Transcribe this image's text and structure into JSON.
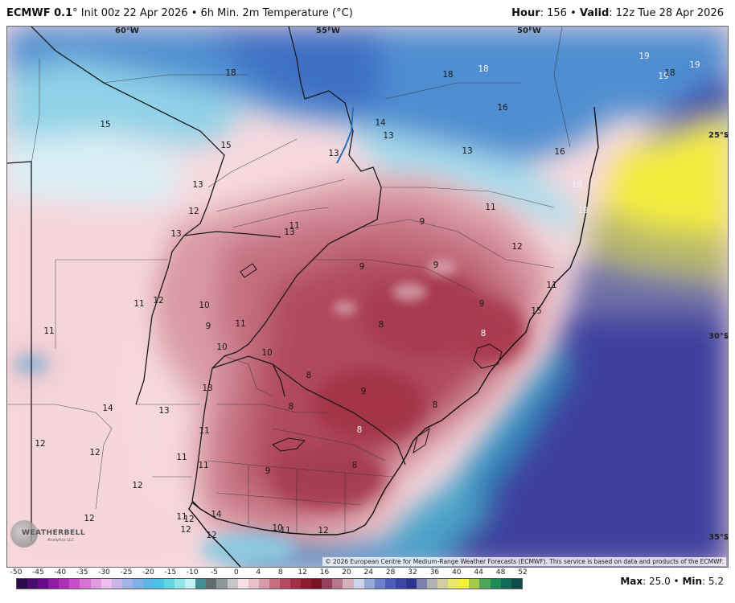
{
  "header": {
    "brand": "ECMWF 0.1",
    "degree": "°",
    "init": "Init 00z 22 Apr 2026",
    "sep": "•",
    "product": "6h Min. 2m Temperature (°C)",
    "hour_label": "Hour",
    "hour_value": "156",
    "valid_label": "Valid",
    "valid_value": "12z Tue 28 Apr 2026"
  },
  "map": {
    "lon_labels": [
      {
        "text": "60°W"
      },
      {
        "text": "55°W"
      },
      {
        "text": "50°W"
      }
    ],
    "lat_labels": [
      {
        "text": "25°S"
      },
      {
        "text": "30°S"
      },
      {
        "text": "35°S"
      }
    ],
    "values": [
      {
        "text": "18"
      },
      {
        "text": "18"
      },
      {
        "text": "18"
      },
      {
        "text": "19"
      },
      {
        "text": "19"
      },
      {
        "text": "18"
      },
      {
        "text": "19"
      },
      {
        "text": "15"
      },
      {
        "text": "15"
      },
      {
        "text": "14"
      },
      {
        "text": "13"
      },
      {
        "text": "13"
      },
      {
        "text": "13"
      },
      {
        "text": "16"
      },
      {
        "text": "16"
      },
      {
        "text": "19"
      },
      {
        "text": "19"
      },
      {
        "text": "13"
      },
      {
        "text": "12"
      },
      {
        "text": "11"
      },
      {
        "text": "13"
      },
      {
        "text": "13"
      },
      {
        "text": "11"
      },
      {
        "text": "9"
      },
      {
        "text": "12"
      },
      {
        "text": "9"
      },
      {
        "text": "9"
      },
      {
        "text": "11"
      },
      {
        "text": "15"
      },
      {
        "text": "11"
      },
      {
        "text": "12"
      },
      {
        "text": "10"
      },
      {
        "text": "9"
      },
      {
        "text": "11"
      },
      {
        "text": "9"
      },
      {
        "text": "8"
      },
      {
        "text": "8"
      },
      {
        "text": "11"
      },
      {
        "text": "10"
      },
      {
        "text": "10"
      },
      {
        "text": "8"
      },
      {
        "text": "13"
      },
      {
        "text": "14"
      },
      {
        "text": "13"
      },
      {
        "text": "8"
      },
      {
        "text": "9"
      },
      {
        "text": "8"
      },
      {
        "text": "11"
      },
      {
        "text": "8"
      },
      {
        "text": "12"
      },
      {
        "text": "12"
      },
      {
        "text": "11"
      },
      {
        "text": "11"
      },
      {
        "text": "9"
      },
      {
        "text": "8"
      },
      {
        "text": "12"
      },
      {
        "text": "12"
      },
      {
        "text": "11"
      },
      {
        "text": "12"
      },
      {
        "text": "14"
      },
      {
        "text": "12"
      },
      {
        "text": "10"
      },
      {
        "text": "11"
      },
      {
        "text": "12"
      }
    ],
    "copyright": "© 2026 European Centre for Medium-Range Weather Forecasts (ECMWF). This service is based on data and products of the ECMWF.",
    "logo_text": "WEATHERBELL",
    "logo_sub": "Analytics LLC"
  },
  "colorbar": {
    "ticks": [
      "-50",
      "-45",
      "-40",
      "-35",
      "-30",
      "-25",
      "-20",
      "-15",
      "-10",
      "-5",
      "0",
      "4",
      "8",
      "12",
      "16",
      "20",
      "24",
      "28",
      "32",
      "36",
      "40",
      "44",
      "48",
      "52"
    ],
    "colors": [
      "#2b0a4a",
      "#4a0b6e",
      "#6b0a8c",
      "#8e1aa6",
      "#b02fb9",
      "#c94ec9",
      "#d873d6",
      "#e39ae2",
      "#ecc0ec",
      "#c9b7e8",
      "#a3b3e6",
      "#7fb0e6",
      "#5eb5e8",
      "#4cc4e6",
      "#62d6e4",
      "#92e6ea",
      "#c4f2f2",
      "#3f8f93",
      "#5f6d6e",
      "#8f9798",
      "#c5c7c7",
      "#f4e0e5",
      "#e8c2cb",
      "#d79aaa",
      "#c66e84",
      "#b44b63",
      "#a32f47",
      "#8f1a33",
      "#7a1025",
      "#96405c",
      "#b6768c",
      "#d6b0bd",
      "#cdd3e8",
      "#98a7da",
      "#6e7fcb",
      "#4e5dbb",
      "#3a45a5",
      "#2c3490",
      "#7e80b0",
      "#b2b2b2",
      "#d0d0a0",
      "#e8e86a",
      "#f2f23a",
      "#a6c94a",
      "#4ea65a",
      "#1f8a5a",
      "#0f6a56",
      "#0c4c4a"
    ]
  },
  "stats": {
    "max_label": "Max",
    "max_value": "25.0",
    "sep": "•",
    "min_label": "Min",
    "min_value": "5.2"
  }
}
